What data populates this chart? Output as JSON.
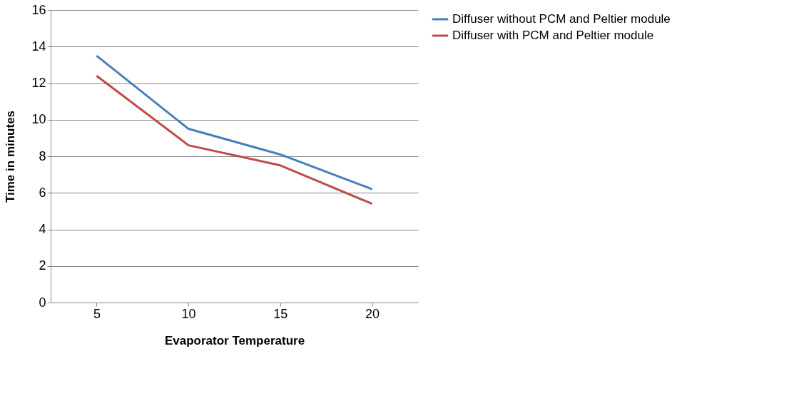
{
  "chart_data": {
    "type": "line",
    "xlabel": "Evaporator Temperature",
    "ylabel": "Time in minutes",
    "categories": [
      "5",
      "10",
      "15",
      "20"
    ],
    "series": [
      {
        "name": "Diffuser without PCM and Peltier module",
        "color": "#4a7ebb",
        "values": [
          13.5,
          9.5,
          8.1,
          6.2
        ]
      },
      {
        "name": "Diffuser with PCM and Peltier module",
        "color": "#be4b48",
        "values": [
          12.4,
          8.6,
          7.5,
          5.4
        ]
      }
    ],
    "ylim": [
      0,
      16
    ],
    "yticks": [
      0,
      2,
      4,
      6,
      8,
      10,
      12,
      14,
      16
    ],
    "grid": "y",
    "legend": "right",
    "marker": "none",
    "line_style": "solid"
  }
}
